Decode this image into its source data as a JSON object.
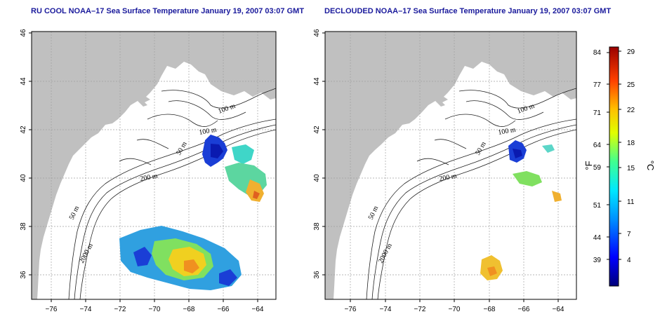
{
  "titles": {
    "left": "RU COOL NOAA–17 Sea Surface Temperature January 19, 2007 03:07 GMT",
    "right": "DECLOUDED NOAA–17 Sea Surface Temperature January 19, 2007 03:07 GMT"
  },
  "axes": {
    "x_ticks": [
      "−76",
      "−74",
      "−72",
      "−70",
      "−68",
      "−66",
      "−64"
    ],
    "y_ticks": [
      "36",
      "38",
      "40",
      "42",
      "44",
      "46"
    ]
  },
  "contour_labels": {
    "m100_a": "100 m",
    "m100_b": "100 m",
    "m50_a": "50 m",
    "m50_b": "50 m",
    "m200": "200 m",
    "m2000": "2000 m"
  },
  "colorbar": {
    "unit_f": "°F",
    "unit_c": "°C",
    "f_ticks": [
      "84",
      "77",
      "71",
      "64",
      "59",
      "51",
      "44",
      "39"
    ],
    "c_ticks": [
      "29",
      "25",
      "22",
      "18",
      "15",
      "11",
      "7",
      "4"
    ]
  },
  "colors": {
    "land": "#c0c0c0",
    "grid": "#a0a0a0",
    "title": "#1a1a9c"
  }
}
